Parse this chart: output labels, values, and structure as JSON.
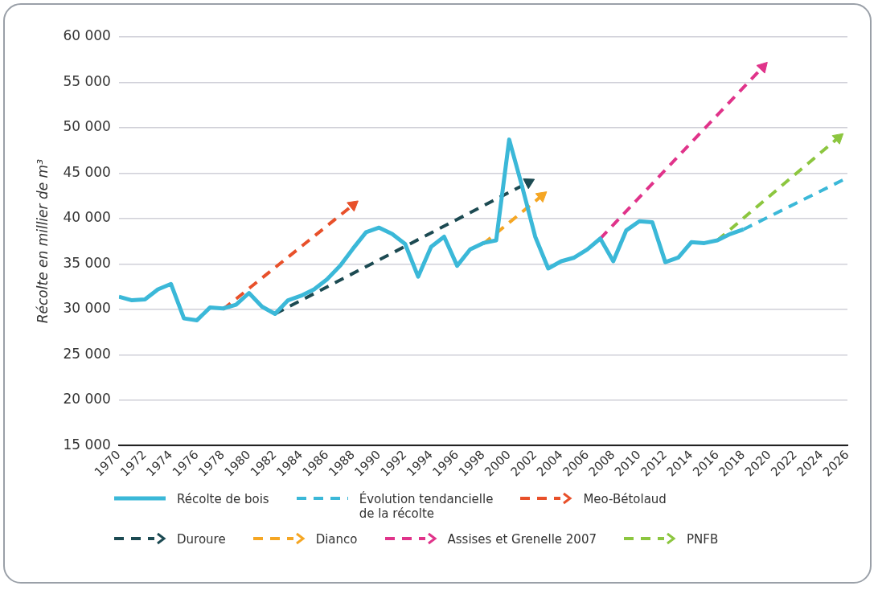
{
  "chart_data": {
    "type": "line",
    "ylabel": "Récolte en millier de m³",
    "xlim": [
      1970,
      2026
    ],
    "xticks": [
      1970,
      1972,
      1974,
      1976,
      1978,
      1980,
      1982,
      1984,
      1986,
      1988,
      1990,
      1992,
      1994,
      1996,
      1998,
      2000,
      2002,
      2004,
      2006,
      2008,
      2010,
      2012,
      2014,
      2016,
      2018,
      2020,
      2022,
      2024,
      2026
    ],
    "ylim": [
      15000,
      60000
    ],
    "yticks": [
      {
        "value": 15000,
        "label": "15 000"
      },
      {
        "value": 20000,
        "label": "20 000"
      },
      {
        "value": 25000,
        "label": "25 000"
      },
      {
        "value": 30000,
        "label": "30 000"
      },
      {
        "value": 35000,
        "label": "35 000"
      },
      {
        "value": 40000,
        "label": "40 000"
      },
      {
        "value": 45000,
        "label": "45 000"
      },
      {
        "value": 50000,
        "label": "50 000"
      },
      {
        "value": 55000,
        "label": "55 000"
      },
      {
        "value": 60000,
        "label": "60 000"
      }
    ],
    "grid": "y",
    "legend": "bottom",
    "series": [
      {
        "name": "Récolte de bois",
        "color": "#3bb8d8",
        "line_style": "solid",
        "x": [
          1970,
          1971,
          1972,
          1973,
          1974,
          1975,
          1976,
          1977,
          1978,
          1979,
          1980,
          1981,
          1982,
          1983,
          1984,
          1985,
          1986,
          1987,
          1988,
          1989,
          1990,
          1991,
          1992,
          1993,
          1994,
          1995,
          1996,
          1997,
          1998,
          1999,
          2000,
          2001,
          2002,
          2003,
          2004,
          2005,
          2006,
          2007,
          2008,
          2009,
          2010,
          2011,
          2012,
          2013,
          2014,
          2015,
          2016,
          2017,
          2018
        ],
        "values": [
          31400,
          31000,
          31100,
          32200,
          32800,
          29000,
          28800,
          30200,
          30100,
          30500,
          31800,
          30300,
          29500,
          31000,
          31500,
          32200,
          33300,
          34800,
          36700,
          38500,
          39000,
          38300,
          37200,
          33600,
          36900,
          38000,
          34800,
          36600,
          37300,
          37600,
          48700,
          43500,
          38000,
          34500,
          35300,
          35700,
          36600,
          37800,
          35300,
          38700,
          39700,
          39600,
          35200,
          35700,
          37400,
          37300,
          37600,
          38300,
          38800
        ]
      },
      {
        "name": "Évolution tendancielle\nde la récolte",
        "color": "#3bb8d8",
        "line_style": "dashed",
        "x": [
          2018,
          2026
        ],
        "values": [
          38800,
          44500
        ]
      },
      {
        "name": "Meo-Bétolaud",
        "color": "#e8502a",
        "line_style": "dashed",
        "marker": "triangle",
        "x": [
          1978,
          1988
        ],
        "values": [
          30000,
          41500
        ]
      },
      {
        "name": "Duroure",
        "color": "#1c4a52",
        "line_style": "dashed",
        "marker": "triangle",
        "x": [
          1982,
          2001.5
        ],
        "values": [
          29500,
          44000
        ]
      },
      {
        "name": "Dianco",
        "color": "#f5a623",
        "line_style": "dashed",
        "marker": "triangle",
        "x": [
          1998,
          2002.5
        ],
        "values": [
          37200,
          42500
        ]
      },
      {
        "name": "Assises et Grenelle 2007",
        "color": "#e0338a",
        "line_style": "dashed",
        "marker": "triangle",
        "x": [
          2007,
          2019.5
        ],
        "values": [
          37800,
          56700
        ]
      },
      {
        "name": "PNFB",
        "color": "#8cc63f",
        "line_style": "dashed",
        "marker": "triangle",
        "x": [
          2016,
          2025.3
        ],
        "values": [
          37600,
          48900
        ]
      }
    ]
  }
}
